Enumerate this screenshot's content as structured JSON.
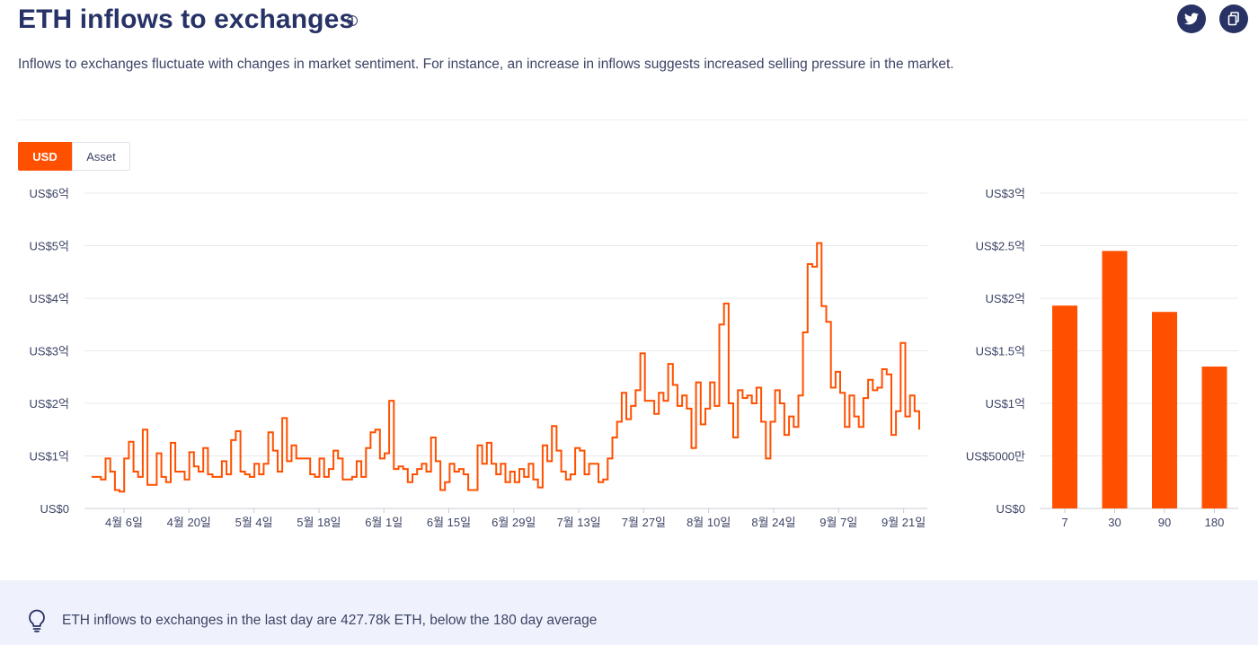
{
  "header": {
    "title": "ETH inflows to exchanges",
    "info_glyph": "i",
    "subtitle": "Inflows to exchanges fluctuate with changes in market sentiment. For instance, an increase in inflows suggests increased selling pressure in the market.",
    "share_icons": [
      "twitter-icon",
      "copy-icon"
    ]
  },
  "toggle": {
    "usd": "USD",
    "asset": "Asset"
  },
  "colors": {
    "accent": "#ff5000",
    "title": "#273266",
    "grid": "#e6e8ee",
    "insight_bg": "#eff2fc"
  },
  "chart_data": [
    {
      "type": "line",
      "step": true,
      "x_ticks": [
        "4월 6일",
        "4월 20일",
        "5월 4일",
        "5월 18일",
        "6월 1일",
        "6월 15일",
        "6월 29일",
        "7월 13일",
        "7월 27일",
        "8월 10일",
        "8월 24일",
        "9월 7일",
        "9월 21일"
      ],
      "y_ticks": [
        "US$0",
        "US$1억",
        "US$2억",
        "US$3억",
        "US$4억",
        "US$5억",
        "US$6억"
      ],
      "ylim": [
        0,
        6
      ],
      "grid": true,
      "series": [
        {
          "values": [
            0.6,
            0.6,
            0.55,
            0.95,
            0.7,
            0.35,
            0.32,
            0.95,
            1.27,
            0.7,
            0.6,
            1.5,
            0.45,
            0.45,
            1.05,
            0.6,
            0.5,
            1.25,
            0.7,
            0.7,
            0.55,
            1.07,
            0.8,
            0.7,
            1.15,
            0.65,
            0.6,
            0.6,
            0.9,
            0.65,
            1.3,
            1.47,
            0.7,
            0.65,
            0.6,
            0.85,
            0.65,
            0.85,
            1.45,
            1.1,
            0.7,
            1.72,
            0.9,
            1.2,
            0.95,
            0.95,
            0.95,
            0.65,
            0.6,
            0.95,
            0.6,
            0.75,
            1.1,
            0.95,
            0.55,
            0.55,
            0.6,
            0.9,
            0.6,
            1.15,
            1.45,
            1.5,
            0.95,
            1.05,
            2.05,
            0.75,
            0.8,
            0.75,
            0.5,
            0.65,
            0.75,
            0.85,
            0.7,
            1.35,
            0.9,
            0.35,
            0.5,
            0.85,
            0.7,
            0.75,
            0.65,
            0.35,
            0.35,
            1.2,
            0.85,
            1.25,
            0.85,
            0.65,
            0.85,
            0.5,
            0.7,
            0.5,
            0.75,
            0.6,
            0.85,
            0.55,
            0.4,
            1.2,
            0.9,
            1.57,
            1.1,
            0.7,
            0.55,
            0.65,
            1.15,
            1.1,
            0.65,
            0.85,
            0.85,
            0.5,
            0.55,
            0.95,
            1.35,
            1.65,
            2.2,
            1.7,
            1.95,
            2.25,
            2.95,
            2.05,
            2.05,
            1.8,
            2.2,
            2.05,
            2.75,
            2.35,
            1.95,
            2.15,
            1.9,
            1.15,
            2.4,
            1.6,
            1.9,
            2.4,
            1.95,
            3.5,
            3.9,
            2.0,
            1.35,
            2.25,
            2.1,
            2.15,
            2.0,
            2.3,
            1.65,
            0.95,
            1.65,
            2.25,
            2.0,
            1.4,
            1.75,
            1.55,
            2.15,
            3.35,
            4.65,
            4.6,
            5.05,
            3.85,
            3.55,
            2.3,
            2.6,
            2.2,
            1.55,
            2.15,
            1.75,
            1.55,
            2.1,
            2.45,
            2.25,
            2.3,
            2.65,
            2.55,
            1.4,
            1.85,
            3.15,
            1.75,
            2.15,
            1.85,
            1.5
          ]
        }
      ]
    },
    {
      "type": "bar",
      "categories": [
        "7",
        "30",
        "90",
        "180"
      ],
      "values": [
        1.93,
        2.45,
        1.87,
        1.35
      ],
      "y_ticks": [
        "US$0",
        "US$5000만",
        "US$1억",
        "US$1.5억",
        "US$2억",
        "US$2.5억",
        "US$3억"
      ],
      "ylim": [
        0,
        3
      ],
      "grid": true
    }
  ],
  "insight": {
    "icon": "lightbulb-icon",
    "text": "ETH inflows to exchanges in the last day are 427.78k ETH, below the 180 day average"
  }
}
